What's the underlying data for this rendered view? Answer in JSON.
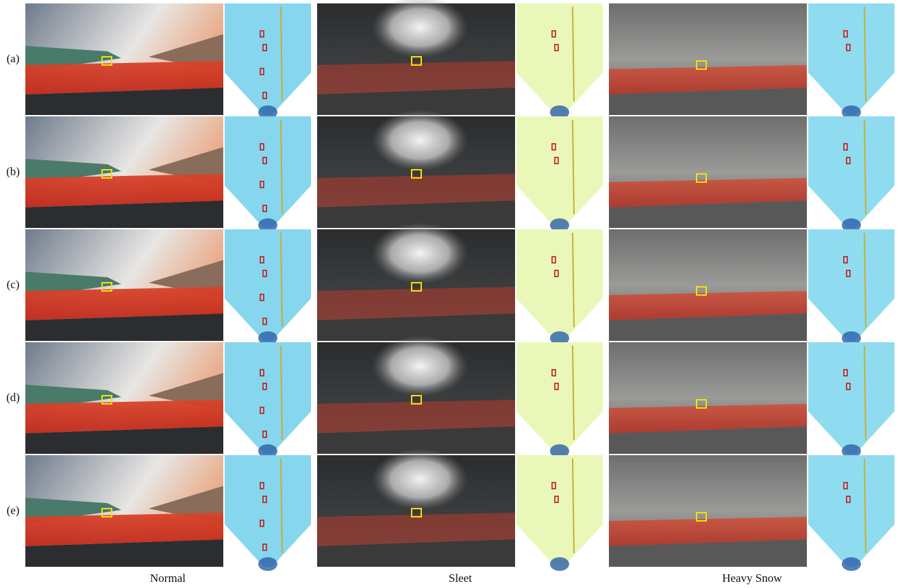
{
  "row_labels": [
    "(a)",
    "(b)",
    "(c)",
    "(d)",
    "(e)"
  ],
  "column_labels": [
    "Normal",
    "Sleet",
    "Heavy Snow"
  ]
}
